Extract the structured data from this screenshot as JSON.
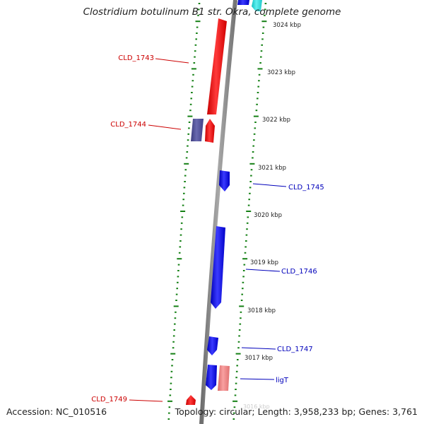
{
  "title": "Clostridium botulinum B1 str. Okra, complete genome",
  "footer": {
    "accession": "Accession: NC_010516",
    "summary": "Topology: circular; Length: 3,958,233 bp; Genes: 3,761",
    "faint_ruler_label": "3016 kbp"
  },
  "colors": {
    "forward_gene": "#f01414",
    "forward_gene_alt": "#f08080",
    "reverse_gene": "#1010ee",
    "reverse_gene_alt": "#55559a",
    "top_gene_cyan": "#33dddd",
    "backbone": "#8a8a8a",
    "ruler": "#158015",
    "label_forward": "#cc0000",
    "label_reverse": "#0000bb"
  },
  "ruler_labels": [
    "3024 kbp",
    "3023 kbp",
    "3022 kbp",
    "3021 kbp",
    "3020 kbp",
    "3019 kbp",
    "3018 kbp",
    "3017 kbp"
  ],
  "gene_labels": [
    {
      "text": "CLD_1743",
      "strand": "forward"
    },
    {
      "text": "CLD_1744",
      "strand": "forward"
    },
    {
      "text": "CLD_1745",
      "strand": "reverse"
    },
    {
      "text": "CLD_1746",
      "strand": "reverse"
    },
    {
      "text": "CLD_1747",
      "strand": "reverse"
    },
    {
      "text": "ligT",
      "strand": "reverse"
    },
    {
      "text": "CLD_1749",
      "strand": "forward"
    }
  ],
  "genes": [
    {
      "label": "",
      "strand": "reverse",
      "color_key": "reverse_gene"
    },
    {
      "label": "",
      "strand": "reverse",
      "color_key": "top_gene_cyan"
    },
    {
      "label": "CLD_1743",
      "strand": "forward",
      "color_key": "forward_gene"
    },
    {
      "label": "CLD_1744",
      "strand": "forward",
      "color_key": "forward_gene"
    },
    {
      "label": "",
      "strand": "reverse",
      "color_key": "reverse_gene_alt"
    },
    {
      "label": "CLD_1745",
      "strand": "reverse",
      "color_key": "reverse_gene"
    },
    {
      "label": "CLD_1746",
      "strand": "reverse",
      "color_key": "reverse_gene"
    },
    {
      "label": "CLD_1747",
      "strand": "reverse",
      "color_key": "reverse_gene"
    },
    {
      "label": "",
      "strand": "reverse",
      "color_key": "reverse_gene"
    },
    {
      "label": "ligT",
      "strand": "reverse",
      "color_key": "forward_gene_alt"
    },
    {
      "label": "CLD_1749",
      "strand": "forward",
      "color_key": "forward_gene"
    }
  ]
}
